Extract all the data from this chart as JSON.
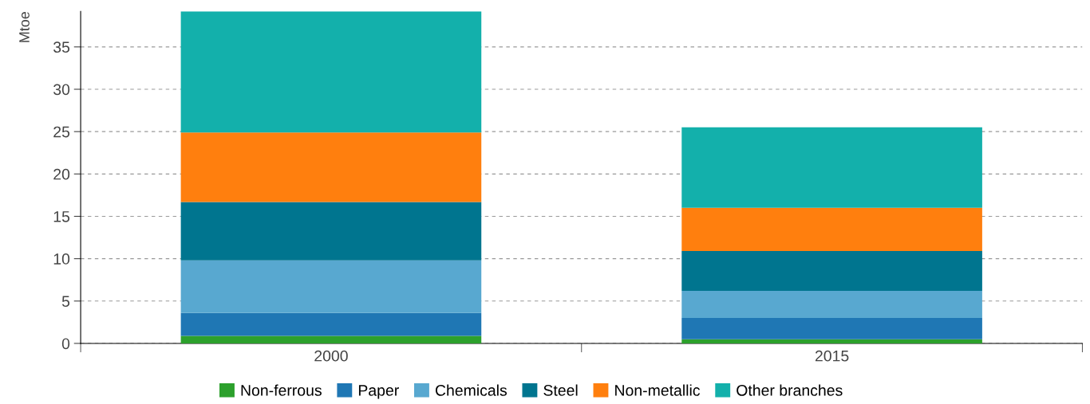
{
  "chart_data": {
    "type": "bar",
    "stacked": true,
    "ylabel": "Mtoe",
    "categories": [
      "2000",
      "2015"
    ],
    "series": [
      {
        "name": "Non-ferrous",
        "color": "#2ca02c",
        "values": [
          0.9,
          0.5
        ]
      },
      {
        "name": "Paper",
        "color": "#1f77b4",
        "values": [
          2.7,
          2.5
        ]
      },
      {
        "name": "Chemicals",
        "color": "#58a8d0",
        "values": [
          6.2,
          3.2
        ]
      },
      {
        "name": "Steel",
        "color": "#00758f",
        "values": [
          6.9,
          4.7
        ]
      },
      {
        "name": "Non-metallic",
        "color": "#ff7f0e",
        "values": [
          8.2,
          5.1
        ]
      },
      {
        "name": "Other branches",
        "color": "#13b0ab",
        "values": [
          14.3,
          9.5
        ]
      }
    ],
    "ylim": [
      0,
      39.2
    ],
    "yticks": [
      0,
      5,
      10,
      15,
      20,
      25,
      30,
      35
    ],
    "grid": "y",
    "legend": "bottom"
  }
}
